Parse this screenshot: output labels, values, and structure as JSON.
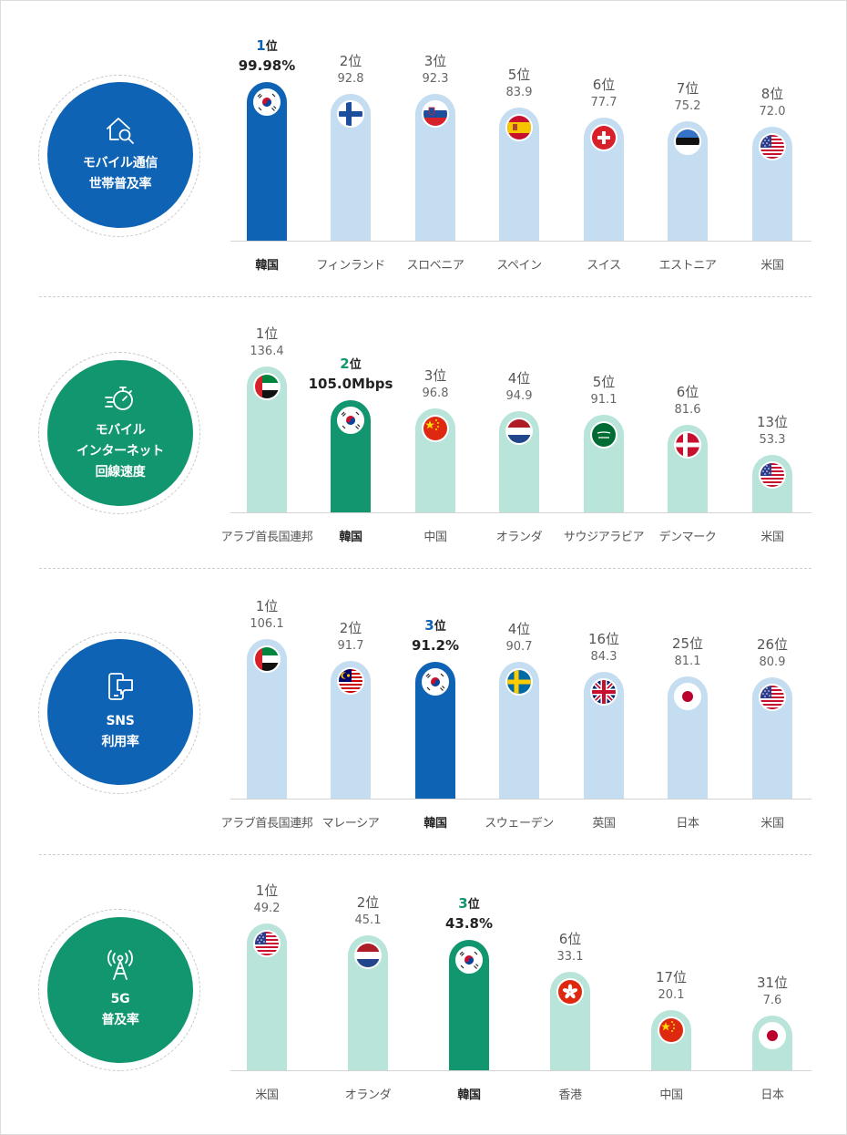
{
  "colors": {
    "blue_highlight": "#0e63b4",
    "blue_light": "#c5ddf1",
    "green_highlight": "#12966f",
    "green_light": "#b9e4d9",
    "rank_blue_text": "#0e63b4",
    "rank_green_text": "#12966f"
  },
  "chart_data": [
    {
      "type": "bar",
      "title": "モバイル通信\n世帯普及率",
      "icon": "house-search-icon",
      "theme": "blue",
      "ylim": [
        0,
        100
      ],
      "categories": [
        "韓国",
        "フィンランド",
        "スロベニア",
        "スペイン",
        "スイス",
        "エストニア",
        "米国"
      ],
      "ranks": [
        "1",
        "2",
        "3",
        "5",
        "6",
        "7",
        "8"
      ],
      "rank_suffix": "位",
      "values": [
        99.98,
        92.8,
        92.3,
        83.9,
        77.7,
        75.2,
        72.0
      ],
      "value_labels": [
        "99.98%",
        "92.8",
        "92.3",
        "83.9",
        "77.7",
        "75.2",
        "72.0"
      ],
      "flags": [
        "kr",
        "fi",
        "si",
        "es",
        "ch",
        "ee",
        "us"
      ],
      "highlight_index": 0
    },
    {
      "type": "bar",
      "title": "モバイル\nインターネット\n回線速度",
      "icon": "stopwatch-speed-icon",
      "theme": "green",
      "ylim": [
        0,
        136.4
      ],
      "categories": [
        "アラブ首長国連邦",
        "韓国",
        "中国",
        "オランダ",
        "サウジアラビア",
        "デンマーク",
        "米国"
      ],
      "ranks": [
        "1",
        "2",
        "3",
        "4",
        "5",
        "6",
        "13"
      ],
      "rank_suffix": "位",
      "values": [
        136.4,
        105.0,
        96.8,
        94.9,
        91.1,
        81.6,
        53.3
      ],
      "value_labels": [
        "136.4",
        "105.0Mbps",
        "96.8",
        "94.9",
        "91.1",
        "81.6",
        "53.3"
      ],
      "flags": [
        "ae",
        "kr",
        "cn",
        "nl",
        "sa",
        "dk",
        "us"
      ],
      "highlight_index": 1
    },
    {
      "type": "bar",
      "title": "SNS\n利用率",
      "icon": "mobile-chat-icon",
      "theme": "blue",
      "ylim": [
        0,
        106.1
      ],
      "categories": [
        "アラブ首長国連邦",
        "マレーシア",
        "韓国",
        "スウェーデン",
        "英国",
        "日本",
        "米国"
      ],
      "ranks": [
        "1",
        "2",
        "3",
        "4",
        "16",
        "25",
        "26"
      ],
      "rank_suffix": "位",
      "values": [
        106.1,
        91.7,
        91.2,
        90.7,
        84.3,
        81.1,
        80.9
      ],
      "value_labels": [
        "106.1",
        "91.7",
        "91.2%",
        "90.7",
        "84.3",
        "81.1",
        "80.9"
      ],
      "flags": [
        "ae",
        "my",
        "kr",
        "se",
        "gb",
        "jp",
        "us"
      ],
      "highlight_index": 2
    },
    {
      "type": "bar",
      "title": "5G\n普及率",
      "icon": "antenna-tower-icon",
      "theme": "green",
      "ylim": [
        0,
        49.2
      ],
      "categories": [
        "米国",
        "オランダ",
        "韓国",
        "香港",
        "中国",
        "日本"
      ],
      "ranks": [
        "1",
        "2",
        "3",
        "6",
        "17",
        "31"
      ],
      "rank_suffix": "位",
      "values": [
        49.2,
        45.1,
        43.8,
        33.1,
        20.1,
        7.6
      ],
      "value_labels": [
        "49.2",
        "45.1",
        "43.8%",
        "33.1",
        "20.1",
        "7.6"
      ],
      "flags": [
        "us",
        "nl",
        "kr",
        "hk",
        "cn",
        "jp"
      ],
      "highlight_index": 2
    }
  ]
}
